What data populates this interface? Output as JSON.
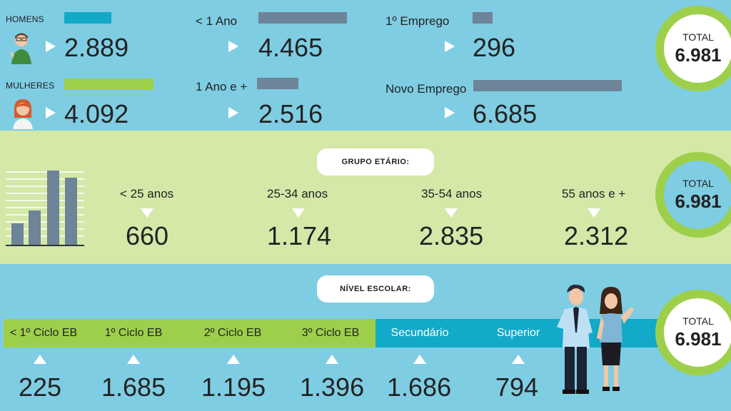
{
  "colors": {
    "sky": "#7fcde3",
    "lime": "#d4e8a8",
    "green": "#9ecf4a",
    "teal": "#13a9c9",
    "slate": "#6d8499"
  },
  "genero": {
    "homens": {
      "label": "HOMENS",
      "value": "2.889",
      "bar_fraction": 0.32
    },
    "mulheres": {
      "label": "MULHERES",
      "value": "4.092",
      "bar_fraction": 0.62
    }
  },
  "duracao": {
    "menos_1": {
      "label": "< 1 Ano",
      "value": "4.465",
      "bar_fraction": 0.62
    },
    "mais_1": {
      "label": "1 Ano e +",
      "value": "2.516",
      "bar_fraction": 0.29
    }
  },
  "emprego": {
    "primeiro": {
      "label": "1º Emprego",
      "value": "296",
      "bar_fraction": 0.14
    },
    "novo": {
      "label": "Novo Emprego",
      "value": "6.685",
      "bar_fraction": 1.0
    }
  },
  "total": {
    "label": "TOTAL",
    "value": "6.981"
  },
  "grupo_etario": {
    "title": "GRUPO ETÁRIO:",
    "items": [
      {
        "label": "< 25 anos",
        "value": "660"
      },
      {
        "label": "25-34 anos",
        "value": "1.174"
      },
      {
        "label": "35-54 anos",
        "value": "2.835"
      },
      {
        "label": "55 anos e +",
        "value": "2.312"
      }
    ]
  },
  "nivel_escolar": {
    "title": "NÍVEL ESCOLAR:",
    "items": [
      {
        "label": "< 1º Ciclo EB",
        "value": "225"
      },
      {
        "label": "1º Ciclo EB",
        "value": "1.685"
      },
      {
        "label": "2º Ciclo EB",
        "value": "1.195"
      },
      {
        "label": "3º Ciclo EB",
        "value": "1.396"
      },
      {
        "label": "Secundário",
        "value": "1.686"
      },
      {
        "label": "Superior",
        "value": "794"
      }
    ]
  },
  "icons": [
    "man-icon",
    "woman-icon",
    "bar-chart-icon",
    "couple-illustration"
  ]
}
